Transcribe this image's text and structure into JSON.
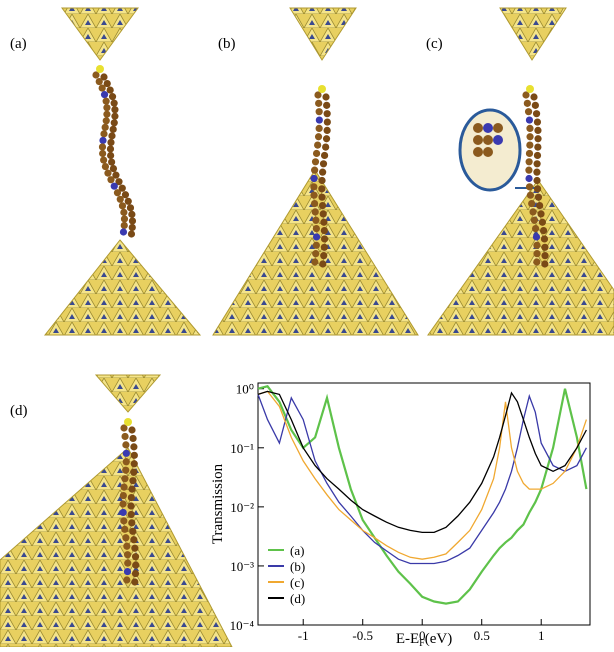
{
  "panels": [
    {
      "label": "(a)"
    },
    {
      "label": "(b)"
    },
    {
      "label": "(c)"
    },
    {
      "label": "(d)"
    }
  ],
  "chart_data": {
    "type": "line",
    "ylabel": "Transmission",
    "xlabel": {
      "main": "E-E",
      "sub": "F",
      "unit": "(eV)"
    },
    "log_y": true,
    "xlim": [
      -1.38,
      1.41
    ],
    "xticks": [
      -1,
      -0.5,
      0,
      0.5,
      1
    ],
    "ylim": [
      0.0001,
      1.25
    ],
    "yticks": [
      {
        "value": 1,
        "label": "10⁰"
      },
      {
        "value": 0.1,
        "label": "10⁻¹"
      },
      {
        "value": 0.01,
        "label": "10⁻²"
      },
      {
        "value": 0.001,
        "label": "10⁻³"
      },
      {
        "value": 0.0001,
        "label": "10⁻⁴"
      }
    ],
    "legend": "lower left",
    "x": [
      -1.38,
      -1.3,
      -1.2,
      -1.1,
      -1.0,
      -0.9,
      -0.8,
      -0.7,
      -0.6,
      -0.5,
      -0.4,
      -0.3,
      -0.2,
      -0.1,
      0,
      0.1,
      0.2,
      0.3,
      0.4,
      0.5,
      0.6,
      0.65,
      0.7,
      0.75,
      0.8,
      0.85,
      0.9,
      0.95,
      1.0,
      1.1,
      1.2,
      1.3,
      1.38
    ],
    "series": [
      {
        "name": "(a)",
        "color": "#5ec24a",
        "values": [
          1.0,
          1.1,
          0.6,
          0.2,
          0.1,
          0.15,
          0.7,
          0.1,
          0.02,
          0.006,
          0.003,
          0.0015,
          0.0008,
          0.0005,
          0.0003,
          0.00025,
          0.00023,
          0.00025,
          0.0004,
          0.0008,
          0.0015,
          0.002,
          0.0025,
          0.003,
          0.004,
          0.005,
          0.008,
          0.012,
          0.02,
          0.1,
          1.0,
          0.15,
          0.02
        ]
      },
      {
        "name": "(b)",
        "color": "#3a3aa8",
        "values": [
          0.8,
          0.3,
          0.12,
          0.7,
          0.3,
          0.06,
          0.025,
          0.012,
          0.007,
          0.004,
          0.0025,
          0.0018,
          0.0013,
          0.0011,
          0.0011,
          0.0011,
          0.0012,
          0.0015,
          0.002,
          0.004,
          0.008,
          0.012,
          0.02,
          0.04,
          0.1,
          0.3,
          0.75,
          0.4,
          0.12,
          0.05,
          0.04,
          0.05,
          0.1
        ]
      },
      {
        "name": "(c)",
        "color": "#f0a830",
        "values": [
          0.8,
          0.9,
          0.5,
          0.15,
          0.06,
          0.03,
          0.016,
          0.009,
          0.006,
          0.004,
          0.003,
          0.0022,
          0.0017,
          0.0014,
          0.0013,
          0.0014,
          0.0016,
          0.0025,
          0.004,
          0.009,
          0.03,
          0.1,
          0.6,
          0.1,
          0.04,
          0.025,
          0.02,
          0.02,
          0.02,
          0.025,
          0.04,
          0.1,
          0.3
        ]
      },
      {
        "name": "(d)",
        "color": "#000000",
        "values": [
          0.8,
          0.9,
          0.8,
          0.3,
          0.1,
          0.05,
          0.03,
          0.02,
          0.013,
          0.009,
          0.007,
          0.0055,
          0.0045,
          0.004,
          0.0037,
          0.0037,
          0.0045,
          0.007,
          0.012,
          0.025,
          0.07,
          0.15,
          0.35,
          0.85,
          0.6,
          0.3,
          0.15,
          0.08,
          0.05,
          0.04,
          0.05,
          0.1,
          0.2
        ]
      }
    ]
  }
}
